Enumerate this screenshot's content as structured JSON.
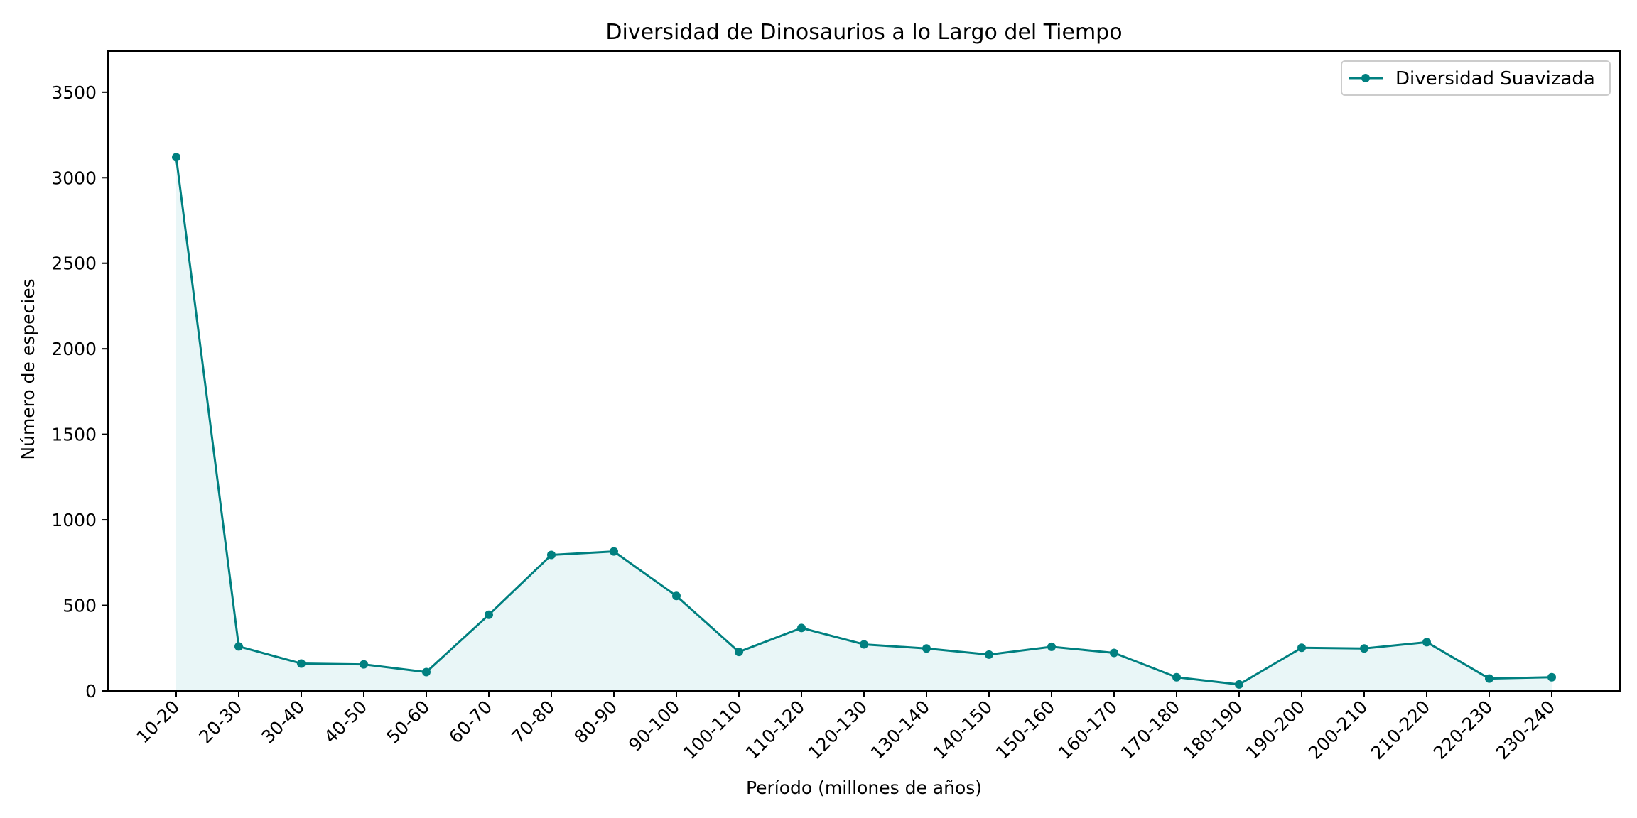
{
  "chart_data": {
    "type": "area",
    "title": "Diversidad de Dinosaurios a lo Largo del Tiempo",
    "xlabel": "Período (millones de años)",
    "ylabel": "Número de especies",
    "categories": [
      "10-20",
      "20-30",
      "30-40",
      "40-50",
      "50-60",
      "60-70",
      "70-80",
      "80-90",
      "90-100",
      "100-110",
      "110-120",
      "120-130",
      "130-140",
      "140-150",
      "150-160",
      "160-170",
      "170-180",
      "180-190",
      "190-200",
      "200-210",
      "210-220",
      "220-230",
      "230-240"
    ],
    "series": [
      {
        "name": "Diversidad Suavizada",
        "values": [
          3120,
          260,
          160,
          155,
          110,
          445,
          795,
          815,
          555,
          228,
          368,
          272,
          248,
          212,
          258,
          222,
          80,
          38,
          252,
          248,
          285,
          72,
          80
        ],
        "color": "#008080",
        "fill_color": "#e0f2f4"
      }
    ],
    "ylim": [
      0,
      3740
    ],
    "yticks": [
      0,
      500,
      1000,
      1500,
      2000,
      2500,
      3000,
      3500
    ],
    "grid": false,
    "legend_position": "upper right",
    "marker": "circle"
  }
}
